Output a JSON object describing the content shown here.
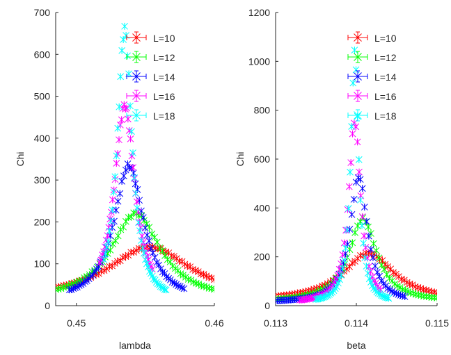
{
  "chart_data": [
    {
      "type": "scatter",
      "xlabel": "lambda",
      "ylabel": "Chi",
      "xlim": [
        0.4485,
        0.46
      ],
      "ylim": [
        0,
        700
      ],
      "xticks": [
        0.45,
        0.46
      ],
      "xtick_labels": [
        "0.45",
        "0.46"
      ],
      "yticks": [
        0,
        100,
        200,
        300,
        400,
        500,
        600,
        700
      ],
      "ytick_labels": [
        "0",
        "100",
        "200",
        "300",
        "400",
        "500",
        "600",
        "700"
      ],
      "legend_position": "top-right",
      "grid": false,
      "series": [
        {
          "name": "L=10",
          "color": "#ff0000",
          "peak_x": 0.4553,
          "peak_y": 140,
          "width": 0.0037,
          "base": 15,
          "x_range": [
            0.4485,
            0.46
          ],
          "n": 60
        },
        {
          "name": "L=12",
          "color": "#00ff00",
          "peak_x": 0.4543,
          "peak_y": 220,
          "width": 0.0022,
          "base": 12,
          "x_range": [
            0.4485,
            0.46
          ],
          "n": 62
        },
        {
          "name": "L=14",
          "color": "#0000ff",
          "peak_x": 0.4538,
          "peak_y": 335,
          "width": 0.0013,
          "base": 10,
          "x_range": [
            0.4495,
            0.4578
          ],
          "n": 60
        },
        {
          "name": "L=16",
          "color": "#ff00ff",
          "peak_x": 0.4535,
          "peak_y": 478,
          "width": 0.0009,
          "base": 8,
          "x_range": [
            0.4517,
            0.4555
          ],
          "n": 42
        },
        {
          "name": "L=18",
          "color": "#00ffff",
          "peak_x": 0.4535,
          "peak_y": 660,
          "width": 0.00065,
          "base": 8,
          "x_range": [
            0.452,
            0.4565
          ],
          "n": 46
        }
      ]
    },
    {
      "type": "scatter",
      "xlabel": "beta",
      "ylabel": "Chi",
      "xlim": [
        0.113,
        0.115
      ],
      "ylim": [
        0,
        1200
      ],
      "xticks": [
        0.113,
        0.114,
        0.115
      ],
      "xtick_labels": [
        "0.113",
        "0.114",
        "0.115"
      ],
      "yticks": [
        0,
        200,
        400,
        600,
        800,
        1000,
        1200
      ],
      "ytick_labels": [
        "0",
        "200",
        "400",
        "600",
        "800",
        "1000",
        "1200"
      ],
      "legend_position": "top-right",
      "grid": false,
      "series": [
        {
          "name": "L=10",
          "color": "#ff0000",
          "peak_x": 0.11415,
          "peak_y": 215,
          "width": 0.00038,
          "base": 20,
          "x_range": [
            0.113,
            0.115
          ],
          "n": 60
        },
        {
          "name": "L=12",
          "color": "#00ff00",
          "peak_x": 0.11408,
          "peak_y": 355,
          "width": 0.00021,
          "base": 15,
          "x_range": [
            0.113,
            0.115
          ],
          "n": 62
        },
        {
          "name": "L=14",
          "color": "#0000ff",
          "peak_x": 0.11403,
          "peak_y": 530,
          "width": 0.00013,
          "base": 12,
          "x_range": [
            0.113,
            0.1146
          ],
          "n": 62
        },
        {
          "name": "L=16",
          "color": "#ff00ff",
          "peak_x": 0.11398,
          "peak_y": 755,
          "width": 9e-05,
          "base": 10,
          "x_range": [
            0.1133,
            0.1143
          ],
          "n": 50
        },
        {
          "name": "L=18",
          "color": "#00ffff",
          "peak_x": 0.11398,
          "peak_y": 1035,
          "width": 6e-05,
          "base": 10,
          "x_range": [
            0.1135,
            0.1144
          ],
          "n": 50
        }
      ]
    }
  ]
}
